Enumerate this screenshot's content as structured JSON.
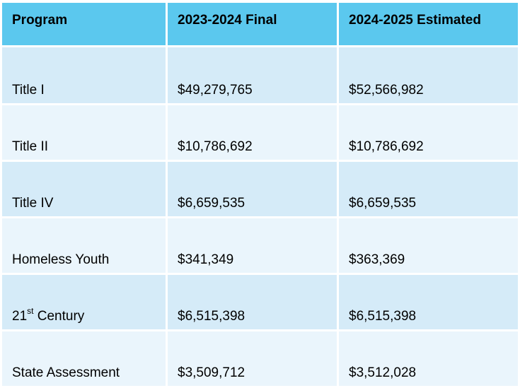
{
  "table": {
    "headers": [
      "Program",
      "2023-2024 Final",
      "2024-2025 Estimated"
    ],
    "rows": [
      {
        "program": "Title I",
        "program_sup": "",
        "program_suffix": "",
        "final_2023_2024": "$49,279,765",
        "estimated_2024_2025": "$52,566,982"
      },
      {
        "program": "Title II",
        "program_sup": "",
        "program_suffix": "",
        "final_2023_2024": "$10,786,692",
        "estimated_2024_2025": "$10,786,692"
      },
      {
        "program": "Title IV",
        "program_sup": "",
        "program_suffix": "",
        "final_2023_2024": "$6,659,535",
        "estimated_2024_2025": "$6,659,535"
      },
      {
        "program": "Homeless Youth",
        "program_sup": "",
        "program_suffix": "",
        "final_2023_2024": "$341,349",
        "estimated_2024_2025": "$363,369"
      },
      {
        "program": "21",
        "program_sup": "st",
        "program_suffix": " Century",
        "final_2023_2024": "$6,515,398",
        "estimated_2024_2025": "$6,515,398"
      },
      {
        "program": "State Assessment",
        "program_sup": "",
        "program_suffix": "",
        "final_2023_2024": "$3,509,712",
        "estimated_2024_2025": "$3,512,028"
      }
    ]
  },
  "colors": {
    "header_bg": "#5bc8ee",
    "row_odd_bg": "#d5ebf8",
    "row_even_bg": "#eaf5fc"
  }
}
